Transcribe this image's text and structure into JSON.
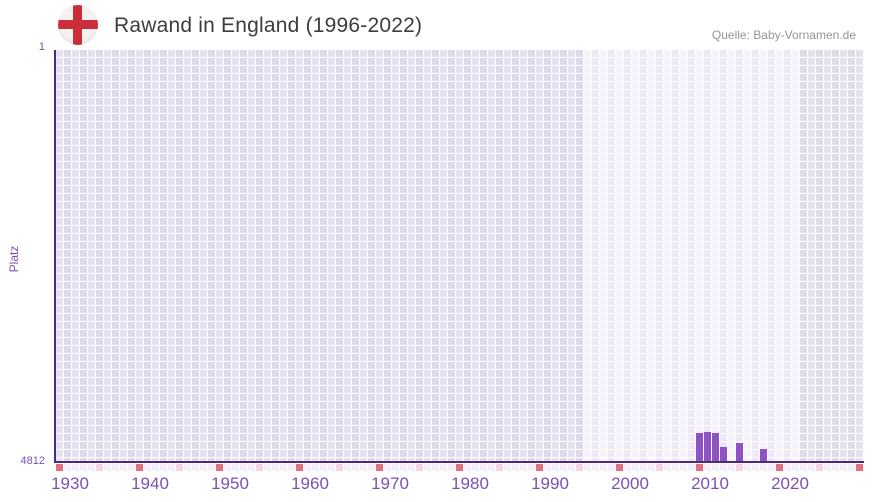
{
  "header": {
    "title": "Rawand in England (1996-2022)",
    "source": "Quelle: Baby-Vornamen.de",
    "flag_icon": "england-flag"
  },
  "axes": {
    "y_title": "Platz",
    "y_top_label": "1",
    "y_bottom_label": "4812",
    "x_tick_labels": [
      "1930",
      "1940",
      "1950",
      "1960",
      "1970",
      "1980",
      "1990",
      "2000",
      "2010",
      "2020"
    ]
  },
  "chart_data": {
    "type": "bar",
    "title": "Rawand in England (1996-2022)",
    "xlabel": "",
    "ylabel": "Platz",
    "x_range": [
      1930,
      2030
    ],
    "x_tick_step": 10,
    "y_axis": {
      "min": 1,
      "max": 4812,
      "inverted": true,
      "note": "rank 1 at top, rank 4812 at baseline"
    },
    "highlight_band_years": [
      1996,
      2022
    ],
    "points": [
      {
        "year": 2010,
        "rank": 4490
      },
      {
        "year": 2011,
        "rank": 4467
      },
      {
        "year": 2012,
        "rank": 4490
      },
      {
        "year": 2013,
        "rank": 4643
      },
      {
        "year": 2015,
        "rank": 4596
      },
      {
        "year": 2018,
        "rank": 4671
      }
    ],
    "legend": null,
    "grid": "checkered",
    "decade_marker_years": [
      1930,
      1940,
      1950,
      1960,
      1970,
      1980,
      1990,
      2000,
      2010,
      2020,
      2030
    ],
    "half_decade_marker_years": [
      1935,
      1945,
      1955,
      1965,
      1975,
      1985,
      1995,
      2005,
      2015,
      2025
    ]
  },
  "colors": {
    "bar": "#8e53c3",
    "axis": "#4b2a7d",
    "tick_label": "#7c50b4",
    "decade_cell": "#e0707e",
    "half_decade_cell": "#f3d3de",
    "title_text": "#3d3d3d",
    "source_text": "#96949a",
    "flag_cross": "#cb2d39"
  }
}
